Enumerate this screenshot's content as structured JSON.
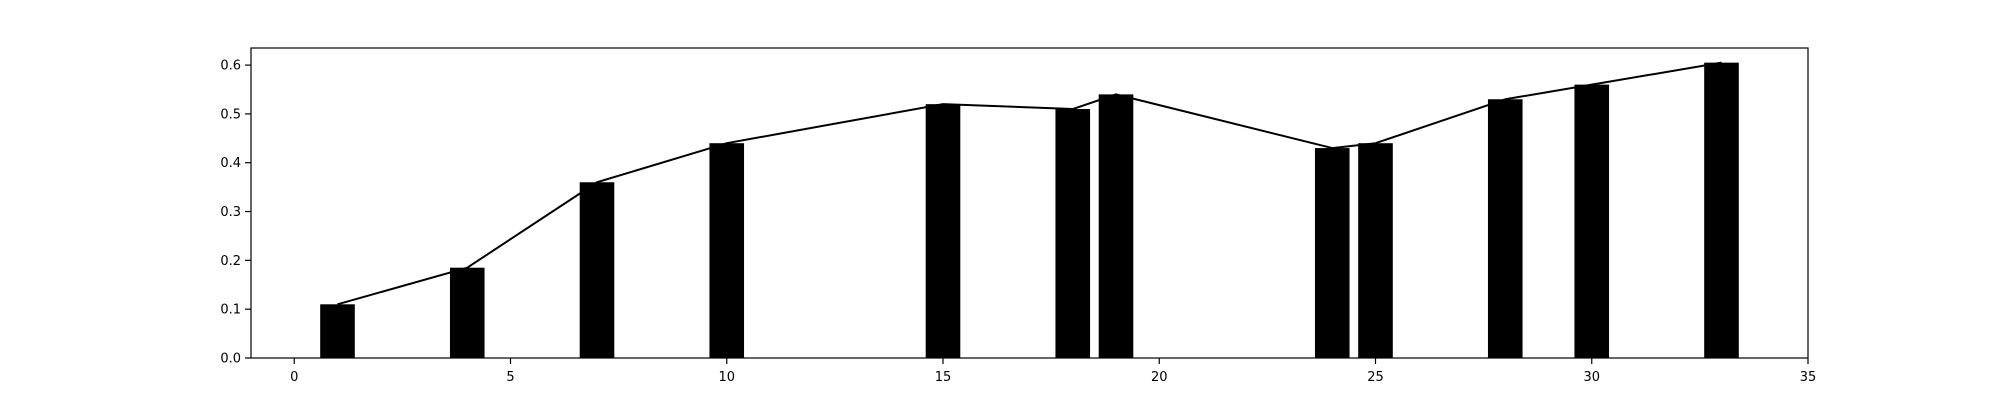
{
  "chart_data": {
    "type": "bar",
    "x": [
      1,
      4,
      7,
      10,
      15,
      18,
      19,
      24,
      25,
      28,
      30,
      33
    ],
    "values": [
      0.11,
      0.185,
      0.36,
      0.44,
      0.52,
      0.51,
      0.54,
      0.43,
      0.44,
      0.53,
      0.56,
      0.605
    ],
    "line_values": [
      0.11,
      0.185,
      0.36,
      0.44,
      0.52,
      0.51,
      0.54,
      0.43,
      0.44,
      0.53,
      0.56,
      0.605
    ],
    "bar_width": 0.8,
    "title": "",
    "xlabel": "",
    "ylabel": "",
    "xlim": [
      -1,
      35
    ],
    "ylim": [
      0,
      0.635
    ],
    "xticks": [
      0,
      5,
      10,
      15,
      20,
      25,
      30,
      35
    ],
    "yticks": [
      0.0,
      0.1,
      0.2,
      0.3,
      0.4,
      0.5,
      0.6
    ],
    "xtick_labels": [
      "0",
      "5",
      "10",
      "15",
      "20",
      "25",
      "30",
      "35"
    ],
    "ytick_labels": [
      "0.0",
      "0.1",
      "0.2",
      "0.3",
      "0.4",
      "0.5",
      "0.6"
    ],
    "grid": false,
    "legend": "none",
    "colors": {
      "bar": "#000000",
      "line": "#000000",
      "axes": "#000000",
      "background": "#ffffff"
    }
  }
}
